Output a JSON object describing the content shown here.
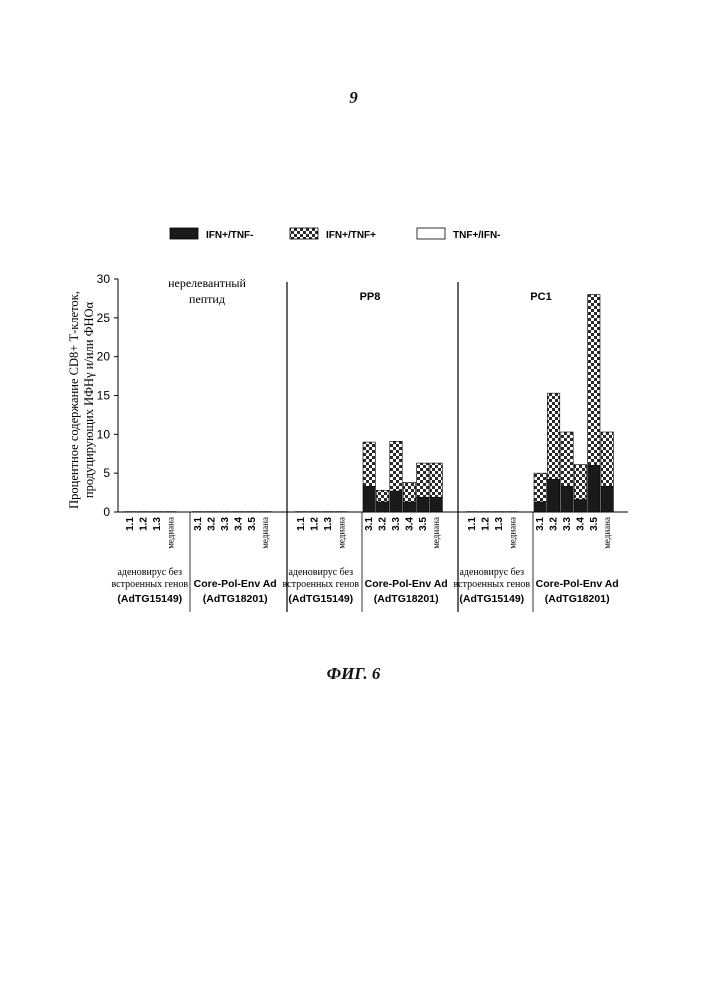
{
  "page_number": "9",
  "figure_caption": "ФИГ. 6",
  "colors": {
    "ifn_only": "#1a1a1a",
    "ifn_tnf_check_a": "#ffffff",
    "ifn_tnf_check_b": "#2a2a2a",
    "tnf_only": "#ffffff",
    "axis": "#000000"
  },
  "chart_data": {
    "type": "bar",
    "stacked": true,
    "ylabel": "Процентное содержание CD8+ Т-клеток, продуцирующих ИФНγ и/или ФНОα",
    "ylim": [
      0,
      30
    ],
    "yticks": [
      "0",
      "5",
      "10",
      "15",
      "20",
      "25",
      "30"
    ],
    "legend_position": "top",
    "legend": [
      {
        "name": "IFN+/TNF-",
        "pattern": "solid-dark"
      },
      {
        "name": "IFN+/TNF+",
        "pattern": "checker"
      },
      {
        "name": "TNF+/IFN-",
        "pattern": "white"
      }
    ],
    "panels": [
      {
        "title": "нерелевантный пептид",
        "groups": [
          {
            "label_line1": "аденовирус без",
            "label_line2": "встроенных генов",
            "label_line3": "(AdTG15149)",
            "categories": [
              "1.1",
              "1.2",
              "1.3",
              "медиана"
            ],
            "series": [
              {
                "name": "IFN+/TNF-",
                "values": [
                  0.1,
                  0.1,
                  0.1,
                  0.1
                ]
              },
              {
                "name": "IFN+/TNF+",
                "values": [
                  0,
                  0,
                  0,
                  0
                ]
              },
              {
                "name": "TNF+/IFN-",
                "values": [
                  0,
                  0,
                  0,
                  0
                ]
              }
            ]
          },
          {
            "label_line1": "Core-Pol-Env Ad",
            "label_line2": "(AdTG18201)",
            "categories": [
              "3.1",
              "3.2",
              "3.3",
              "3.4",
              "3.5",
              "медиана"
            ],
            "series": [
              {
                "name": "IFN+/TNF-",
                "values": [
                  0.1,
                  0.1,
                  0.1,
                  0.1,
                  0.1,
                  0.1
                ]
              },
              {
                "name": "IFN+/TNF+",
                "values": [
                  0,
                  0,
                  0,
                  0,
                  0,
                  0
                ]
              },
              {
                "name": "TNF+/IFN-",
                "values": [
                  0,
                  0,
                  0,
                  0,
                  0,
                  0
                ]
              }
            ]
          }
        ]
      },
      {
        "title": "PP8",
        "groups": [
          {
            "label_line1": "аденовирус без",
            "label_line2": "встроенных генов",
            "label_line3": "(AdTG15149)",
            "categories": [
              "1.1",
              "1.2",
              "1.3",
              "медиана"
            ],
            "series": [
              {
                "name": "IFN+/TNF-",
                "values": [
                  0.1,
                  0.1,
                  0.1,
                  0.1
                ]
              },
              {
                "name": "IFN+/TNF+",
                "values": [
                  0,
                  0,
                  0,
                  0
                ]
              },
              {
                "name": "TNF+/IFN-",
                "values": [
                  0,
                  0,
                  0,
                  0
                ]
              }
            ]
          },
          {
            "label_line1": "Core-Pol-Env Ad",
            "label_line2": "(AdTG18201)",
            "categories": [
              "3.1",
              "3.2",
              "3.3",
              "3.4",
              "3.5",
              "медиана"
            ],
            "series": [
              {
                "name": "IFN+/TNF-",
                "values": [
                  3.3,
                  1.3,
                  2.7,
                  1.3,
                  1.9,
                  1.9
                ]
              },
              {
                "name": "IFN+/TNF+",
                "values": [
                  5.7,
                  1.5,
                  6.4,
                  2.5,
                  4.4,
                  4.4
                ]
              },
              {
                "name": "TNF+/IFN-",
                "values": [
                  0,
                  0,
                  0,
                  0,
                  0,
                  0
                ]
              }
            ]
          }
        ]
      },
      {
        "title": "PC1",
        "groups": [
          {
            "label_line1": "аденовирус без",
            "label_line2": "встроенных генов",
            "label_line3": "(AdTG15149)",
            "categories": [
              "1.1",
              "1.2",
              "1.3",
              "медиана"
            ],
            "series": [
              {
                "name": "IFN+/TNF-",
                "values": [
                  0.1,
                  0.1,
                  0.1,
                  0.1
                ]
              },
              {
                "name": "IFN+/TNF+",
                "values": [
                  0,
                  0,
                  0,
                  0
                ]
              },
              {
                "name": "TNF+/IFN-",
                "values": [
                  0,
                  0,
                  0,
                  0
                ]
              }
            ]
          },
          {
            "label_line1": "Core-Pol-Env Ad",
            "label_line2": "(AdTG18201)",
            "categories": [
              "3.1",
              "3.2",
              "3.3",
              "3.4",
              "3.5",
              "медиана"
            ],
            "series": [
              {
                "name": "IFN+/TNF-",
                "values": [
                  1.3,
                  4.2,
                  3.3,
                  1.6,
                  6.0,
                  3.3
                ]
              },
              {
                "name": "IFN+/TNF+",
                "values": [
                  3.7,
                  11.1,
                  7.0,
                  4.5,
                  22.0,
                  7.0
                ]
              },
              {
                "name": "TNF+/IFN-",
                "values": [
                  0,
                  0,
                  0,
                  0,
                  0,
                  0
                ]
              }
            ]
          }
        ]
      }
    ]
  }
}
